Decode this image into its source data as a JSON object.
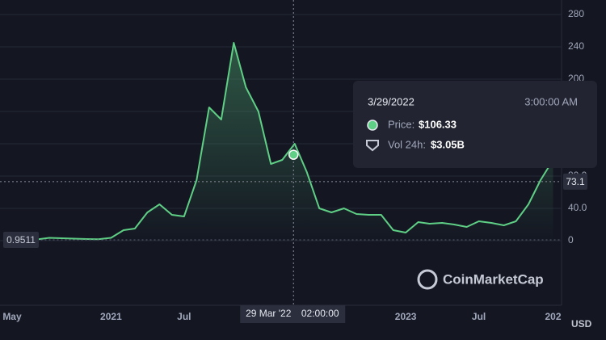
{
  "chart_data": {
    "type": "line",
    "x": [
      "2020-06",
      "2020-07",
      "2020-08",
      "2020-09",
      "2020-10",
      "2020-11",
      "2020-12",
      "2021-01",
      "2021-02",
      "2021-03",
      "2021-04",
      "2021-05",
      "2021-06",
      "2021-07",
      "2021-08",
      "2021-09",
      "2021-10",
      "2021-11",
      "2021-12",
      "2022-01",
      "2022-02",
      "2022-03",
      "2022-04",
      "2022-05",
      "2022-06",
      "2022-07",
      "2022-08",
      "2022-09",
      "2022-10",
      "2022-11",
      "2022-12",
      "2023-01",
      "2023-02",
      "2023-03",
      "2023-04",
      "2023-05",
      "2023-06",
      "2023-07",
      "2023-08",
      "2023-09",
      "2023-10",
      "2023-11",
      "2023-12",
      "2024-01"
    ],
    "values": [
      0.9511,
      1.5,
      3.5,
      3,
      2.5,
      2,
      1.8,
      3.5,
      13,
      15,
      35,
      45,
      32,
      30,
      75,
      165,
      150,
      245,
      190,
      160,
      95,
      100,
      120,
      85,
      40,
      35,
      40,
      33,
      32,
      32,
      13,
      10,
      23,
      21,
      22,
      20,
      17,
      24,
      22,
      19,
      24,
      45,
      75,
      100
    ],
    "color": "#5fcf85",
    "xlim": [
      "2020-04",
      "2024-02"
    ],
    "xticks": [
      {
        "value": "2020-05",
        "label": "May"
      },
      {
        "value": "2021-01",
        "label": "2021"
      },
      {
        "value": "2021-07",
        "label": "Jul"
      },
      {
        "value": "2023-01",
        "label": "2023"
      },
      {
        "value": "2023-07",
        "label": "Jul"
      },
      {
        "value": "2024-01",
        "label": "202"
      }
    ],
    "ylim": [
      -80,
      295
    ],
    "yticks": [
      280,
      240,
      200,
      160,
      120,
      {
        "value": 80,
        "label": "80.0"
      },
      {
        "value": 40,
        "label": "40.0"
      },
      0
    ],
    "grid": true,
    "y_unit": "USD",
    "crosshair": {
      "x": {
        "value": "2022-03-29",
        "label": "29 Mar '22"
      },
      "time": "02:00:00",
      "y": 73.1
    },
    "tooltip": {
      "date": "3/29/2022",
      "time": "3:00:00 AM",
      "price_label": "Price:",
      "price": {
        "value": 106.33,
        "label": "$106.33"
      },
      "volume_label": "Vol 24h:",
      "volume": "$3.05B"
    },
    "watermark": "CoinMarketCap"
  }
}
